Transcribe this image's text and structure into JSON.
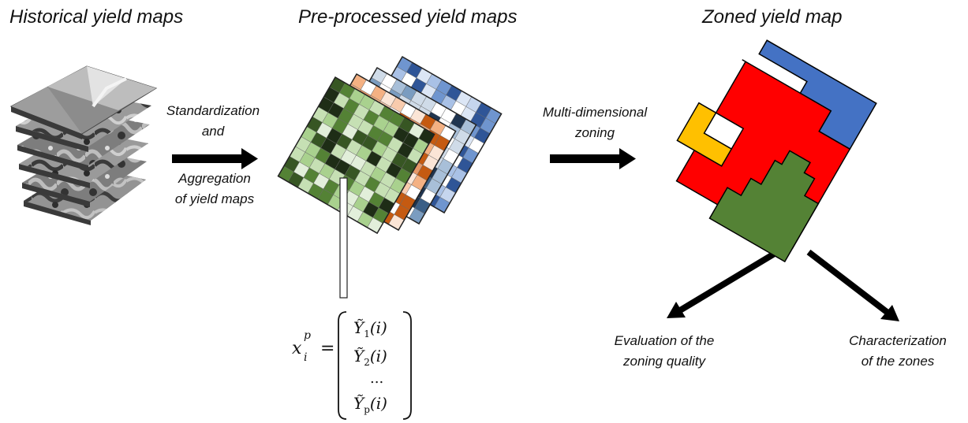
{
  "titles": {
    "historical": "Historical yield maps",
    "preprocessed": "Pre-processed yield maps",
    "zoned": "Zoned yield map"
  },
  "arrow_labels": {
    "standardization_line1": "Standardization",
    "standardization_line2": "and",
    "aggregation_line1": "Aggregation",
    "aggregation_line2": "of yield maps",
    "zoning_line1": "Multi-dimensional",
    "zoning_line2": "zoning"
  },
  "outputs": {
    "evaluation_line1": "Evaluation of the",
    "evaluation_line2": "zoning quality",
    "characterization_line1": "Characterization",
    "characterization_line2": "of the zones"
  },
  "formula": {
    "lhs": "x",
    "lhs_sup": "p",
    "lhs_sub": "i",
    "equals": "=",
    "row1": "Ỹ",
    "row1_sub": "1",
    "row1_arg": "(i)",
    "row2": "Ỹ",
    "row2_sub": "2",
    "row2_arg": "(i)",
    "row3": "...",
    "row4": "Ỹ",
    "row4_sub": "p",
    "row4_arg": "(i)"
  },
  "colors": {
    "zone_red": "#ff0000",
    "zone_blue": "#4472c4",
    "zone_green": "#548235",
    "zone_yellow": "#ffc000",
    "arrow": "#000000"
  }
}
